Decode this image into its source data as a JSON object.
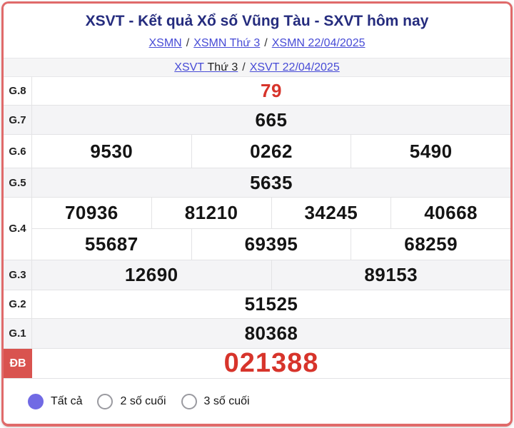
{
  "header": {
    "title": "XSVT - Kết quả Xổ số Vũng Tàu - SXVT hôm nay",
    "breadcrumb": {
      "separator": "/",
      "links": [
        "XSMN",
        "XSMN Thứ 3",
        "XSMN 22/04/2025"
      ]
    },
    "sub_breadcrumb": {
      "separator": "/",
      "link1": "XSVT",
      "link1_suffix": "Thứ 3",
      "link2": "XSVT 22/04/2025"
    }
  },
  "results_table": {
    "rows": [
      {
        "label": "G.8",
        "values": [
          "79"
        ],
        "highlight": true
      },
      {
        "label": "G.7",
        "values": [
          "665"
        ]
      },
      {
        "label": "G.6",
        "values": [
          "9530",
          "0262",
          "5490"
        ]
      },
      {
        "label": "G.5",
        "values": [
          "5635"
        ]
      },
      {
        "label": "G.4",
        "values": [
          "70936",
          "81210",
          "34245",
          "40668",
          "55687",
          "69395",
          "68259"
        ]
      },
      {
        "label": "G.3",
        "values": [
          "12690",
          "89153"
        ]
      },
      {
        "label": "G.2",
        "values": [
          "51525"
        ]
      },
      {
        "label": "G.1",
        "values": [
          "80368"
        ]
      },
      {
        "label": "ĐB",
        "values": [
          "021388"
        ],
        "highlight": true
      }
    ]
  },
  "filters": {
    "options": [
      {
        "label": "Tất cả",
        "selected": true
      },
      {
        "label": "2 số cuối",
        "selected": false
      },
      {
        "label": "3 số cuối",
        "selected": false
      }
    ]
  },
  "colors": {
    "title": "#252c7e",
    "link": "#474bd6",
    "highlight_red": "#d7342b",
    "db_badge_bg": "#d9534f",
    "radio_selected": "#716ae4",
    "frame_border": "#e06a6a",
    "row_alt_bg": "#f4f4f6"
  }
}
